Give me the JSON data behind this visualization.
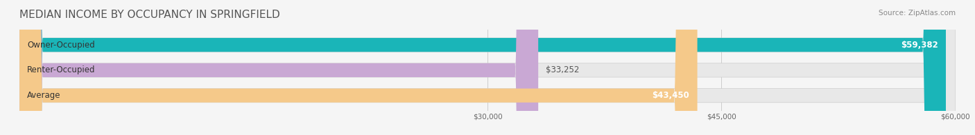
{
  "title": "MEDIAN INCOME BY OCCUPANCY IN SPRINGFIELD",
  "source": "Source: ZipAtlas.com",
  "categories": [
    "Owner-Occupied",
    "Renter-Occupied",
    "Average"
  ],
  "values": [
    59382,
    33252,
    43450
  ],
  "bar_colors": [
    "#1ab5b8",
    "#c9a8d4",
    "#f5c98a"
  ],
  "bar_labels": [
    "$59,382",
    "$33,252",
    "$43,450"
  ],
  "xlim": [
    0,
    60000
  ],
  "xticks": [
    30000,
    45000,
    60000
  ],
  "xtick_labels": [
    "$30,000",
    "$45,000",
    "$60,000"
  ],
  "background_color": "#f5f5f5",
  "bar_bg_color": "#e8e8e8",
  "title_fontsize": 11,
  "label_fontsize": 8.5,
  "value_fontsize": 8.5
}
